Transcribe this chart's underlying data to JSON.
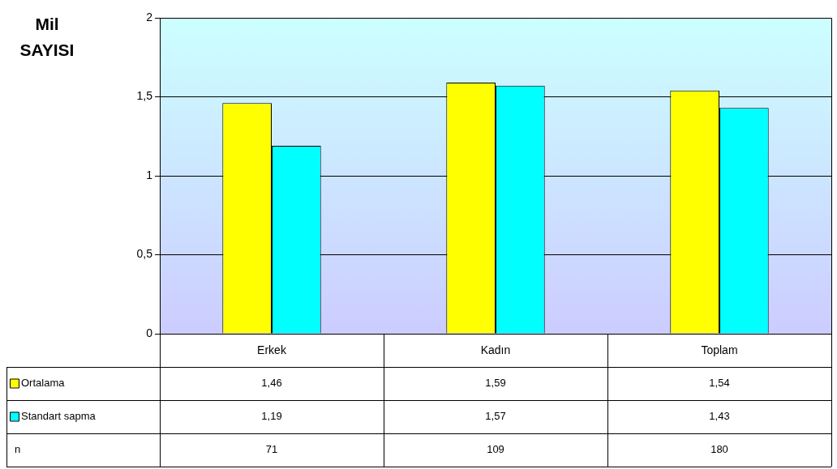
{
  "chart_data": {
    "type": "bar",
    "ylabel": "Mil SAYISI",
    "categories": [
      "Erkek",
      "Kadın",
      "Toplam"
    ],
    "series": [
      {
        "name": "Ortalama",
        "color": "#ffff00",
        "values": [
          1.46,
          1.59,
          1.54
        ],
        "value_labels": [
          "1,46",
          "1,59",
          "1,54"
        ]
      },
      {
        "name": "Standart sapma",
        "color": "#00ffff",
        "values": [
          1.19,
          1.57,
          1.43
        ],
        "value_labels": [
          "1,19",
          "1,57",
          "1,43"
        ]
      }
    ],
    "annotations": [
      "n",
      "71",
      "109",
      "180"
    ],
    "ylim": [
      0,
      2
    ],
    "yticks": [
      0,
      {
        "value": 0.5,
        "label": "0,5"
      },
      1,
      {
        "value": 1.5,
        "label": "1,5"
      },
      2
    ],
    "grid": "y",
    "legend": "bottom left"
  }
}
